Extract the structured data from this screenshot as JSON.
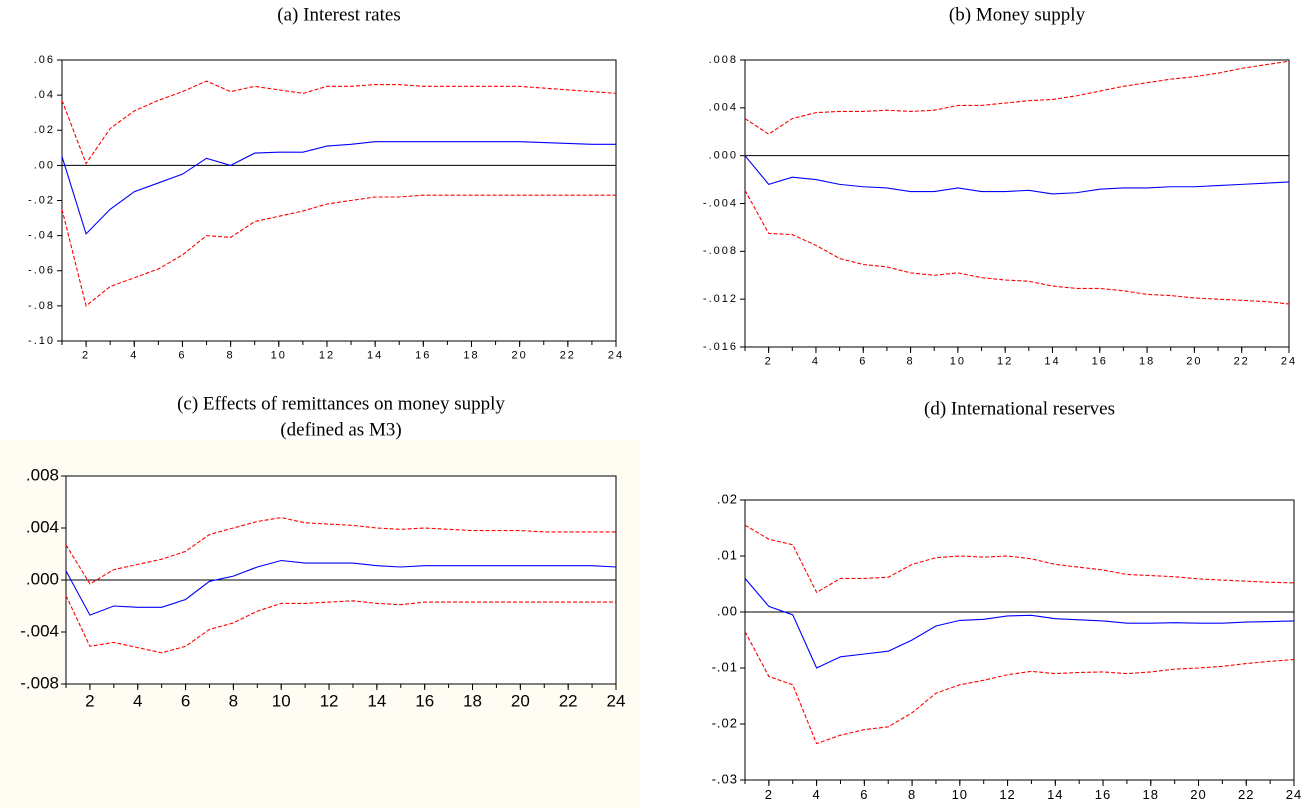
{
  "chart_data": [
    {
      "type": "line",
      "title": "(a) Interest rates",
      "x": [
        1,
        2,
        3,
        4,
        5,
        6,
        7,
        8,
        9,
        10,
        11,
        12,
        13,
        14,
        15,
        16,
        17,
        18,
        19,
        20,
        21,
        22,
        23,
        24
      ],
      "xlim": [
        1,
        24
      ],
      "xticks": [
        2,
        4,
        6,
        8,
        10,
        12,
        14,
        16,
        18,
        20,
        22,
        24
      ],
      "ylim": [
        -0.1,
        0.06
      ],
      "yticks": [
        {
          "value": 0.06,
          "label": ".06"
        },
        {
          "value": 0.04,
          "label": ".04"
        },
        {
          "value": 0.02,
          "label": ".02"
        },
        {
          "value": 0,
          "label": ".00"
        },
        {
          "value": -0.02,
          "label": "-.02"
        },
        {
          "value": -0.04,
          "label": "-.04"
        },
        {
          "value": -0.06,
          "label": "-.06"
        },
        {
          "value": -0.08,
          "label": "-.08"
        },
        {
          "value": -0.1,
          "label": "-.10"
        }
      ],
      "zero_line": true,
      "series": [
        {
          "color": "#ff0000",
          "dashed": true,
          "values": [
            0.037,
            0.001,
            0.021,
            0.031,
            0.037,
            0.042,
            0.048,
            0.042,
            0.045,
            0.043,
            0.041,
            0.045,
            0.045,
            0.046,
            0.046,
            0.045,
            0.045,
            0.045,
            0.045,
            0.045,
            0.044,
            0.043,
            0.042,
            0.041
          ]
        },
        {
          "color": "#0000ff",
          "dashed": false,
          "values": [
            0.005,
            -0.039,
            -0.025,
            -0.015,
            -0.01,
            -0.005,
            0.004,
            0.0,
            0.007,
            0.0075,
            0.0075,
            0.011,
            0.012,
            0.0135,
            0.0135,
            0.0135,
            0.0135,
            0.0135,
            0.0135,
            0.0135,
            0.013,
            0.0125,
            0.012,
            0.012
          ]
        },
        {
          "color": "#ff0000",
          "dashed": true,
          "values": [
            -0.025,
            -0.08,
            -0.069,
            -0.064,
            -0.059,
            -0.051,
            -0.04,
            -0.041,
            -0.032,
            -0.029,
            -0.026,
            -0.022,
            -0.02,
            -0.018,
            -0.018,
            -0.017,
            -0.017,
            -0.017,
            -0.017,
            -0.017,
            -0.017,
            -0.017,
            -0.017,
            -0.017
          ]
        }
      ]
    },
    {
      "type": "line",
      "title": "(b) Money supply",
      "x": [
        1,
        2,
        3,
        4,
        5,
        6,
        7,
        8,
        9,
        10,
        11,
        12,
        13,
        14,
        15,
        16,
        17,
        18,
        19,
        20,
        21,
        22,
        23,
        24
      ],
      "xlim": [
        1,
        24
      ],
      "xticks": [
        2,
        4,
        6,
        8,
        10,
        12,
        14,
        16,
        18,
        20,
        22,
        24
      ],
      "ylim": [
        -0.016,
        0.008
      ],
      "yticks": [
        {
          "value": 0.008,
          "label": ".008"
        },
        {
          "value": 0.004,
          "label": ".004"
        },
        {
          "value": 0,
          "label": ".000"
        },
        {
          "value": -0.004,
          "label": "-.004"
        },
        {
          "value": -0.008,
          "label": "-.008"
        },
        {
          "value": -0.012,
          "label": "-.012"
        },
        {
          "value": -0.016,
          "label": "-.016"
        }
      ],
      "zero_line": true,
      "series": [
        {
          "color": "#ff0000",
          "dashed": true,
          "values": [
            0.0031,
            0.0018,
            0.0031,
            0.0036,
            0.0037,
            0.0037,
            0.0038,
            0.0037,
            0.0038,
            0.0042,
            0.0042,
            0.0044,
            0.0046,
            0.0047,
            0.005,
            0.0054,
            0.0058,
            0.0061,
            0.0064,
            0.0066,
            0.0069,
            0.0073,
            0.0076,
            0.0079
          ]
        },
        {
          "color": "#0000ff",
          "dashed": false,
          "values": [
            0.0,
            -0.0024,
            -0.0018,
            -0.002,
            -0.0024,
            -0.0026,
            -0.0027,
            -0.003,
            -0.003,
            -0.0027,
            -0.003,
            -0.003,
            -0.0029,
            -0.0032,
            -0.0031,
            -0.0028,
            -0.0027,
            -0.0027,
            -0.0026,
            -0.0026,
            -0.0025,
            -0.0024,
            -0.0023,
            -0.0022
          ]
        },
        {
          "color": "#ff0000",
          "dashed": true,
          "values": [
            -0.0029,
            -0.0065,
            -0.0066,
            -0.0075,
            -0.0086,
            -0.0091,
            -0.0093,
            -0.0098,
            -0.01,
            -0.0098,
            -0.0102,
            -0.0104,
            -0.0105,
            -0.0109,
            -0.0111,
            -0.0111,
            -0.0113,
            -0.0116,
            -0.0117,
            -0.0119,
            -0.012,
            -0.0121,
            -0.0122,
            -0.0124
          ]
        }
      ]
    },
    {
      "type": "line",
      "title": "(c) Effects of remittances on money supply",
      "subtitle": "(defined as M3)",
      "x": [
        1,
        2,
        3,
        4,
        5,
        6,
        7,
        8,
        9,
        10,
        11,
        12,
        13,
        14,
        15,
        16,
        17,
        18,
        19,
        20,
        21,
        22,
        23,
        24
      ],
      "xlim": [
        1,
        24
      ],
      "xticks": [
        2,
        4,
        6,
        8,
        10,
        12,
        14,
        16,
        18,
        20,
        22,
        24
      ],
      "ylim": [
        -0.008,
        0.008
      ],
      "yticks": [
        {
          "value": 0.008,
          "label": ".008"
        },
        {
          "value": 0.004,
          "label": ".004"
        },
        {
          "value": 0,
          "label": ".000"
        },
        {
          "value": -0.004,
          "label": "-.004"
        },
        {
          "value": -0.008,
          "label": "-.008"
        }
      ],
      "zero_line": true,
      "series": [
        {
          "color": "#ff0000",
          "dashed": true,
          "values": [
            0.0027,
            -0.0003,
            0.0008,
            0.0012,
            0.0016,
            0.0022,
            0.0035,
            0.004,
            0.0045,
            0.0048,
            0.0044,
            0.0043,
            0.0042,
            0.004,
            0.0039,
            0.004,
            0.0039,
            0.0038,
            0.0038,
            0.0038,
            0.0037,
            0.0037,
            0.0037,
            0.0037
          ]
        },
        {
          "color": "#0000ff",
          "dashed": false,
          "values": [
            0.0007,
            -0.0027,
            -0.002,
            -0.0021,
            -0.0021,
            -0.0015,
            -0.0001,
            0.0003,
            0.001,
            0.0015,
            0.0013,
            0.0013,
            0.0013,
            0.0011,
            0.001,
            0.0011,
            0.0011,
            0.0011,
            0.0011,
            0.0011,
            0.0011,
            0.0011,
            0.0011,
            0.001
          ]
        },
        {
          "color": "#ff0000",
          "dashed": true,
          "values": [
            -0.0012,
            -0.0051,
            -0.0048,
            -0.0052,
            -0.0056,
            -0.0051,
            -0.0038,
            -0.0033,
            -0.0024,
            -0.0018,
            -0.0018,
            -0.0017,
            -0.0016,
            -0.0018,
            -0.0019,
            -0.0017,
            -0.0017,
            -0.0017,
            -0.0017,
            -0.0017,
            -0.0017,
            -0.0017,
            -0.0017,
            -0.0017
          ]
        }
      ]
    },
    {
      "type": "line",
      "title": "(d) International reserves",
      "x": [
        1,
        2,
        3,
        4,
        5,
        6,
        7,
        8,
        9,
        10,
        11,
        12,
        13,
        14,
        15,
        16,
        17,
        18,
        19,
        20,
        21,
        22,
        23,
        24
      ],
      "xlim": [
        1,
        24
      ],
      "xticks": [
        2,
        4,
        6,
        8,
        10,
        12,
        14,
        16,
        18,
        20,
        22,
        24
      ],
      "ylim": [
        -0.03,
        0.02
      ],
      "yticks": [
        {
          "value": 0.02,
          "label": ".02"
        },
        {
          "value": 0.01,
          "label": ".01"
        },
        {
          "value": 0,
          "label": ".00"
        },
        {
          "value": -0.01,
          "label": "-.01"
        },
        {
          "value": -0.02,
          "label": "-.02"
        },
        {
          "value": -0.03,
          "label": "-.03"
        }
      ],
      "zero_line": true,
      "series": [
        {
          "color": "#ff0000",
          "dashed": true,
          "values": [
            0.0155,
            0.013,
            0.012,
            0.0035,
            0.006,
            0.006,
            0.0062,
            0.0085,
            0.0097,
            0.01,
            0.0098,
            0.01,
            0.0095,
            0.0085,
            0.008,
            0.0075,
            0.0067,
            0.0065,
            0.0063,
            0.0059,
            0.0057,
            0.0055,
            0.0053,
            0.0052
          ]
        },
        {
          "color": "#0000ff",
          "dashed": false,
          "values": [
            0.006,
            0.001,
            -0.0005,
            -0.01,
            -0.008,
            -0.0075,
            -0.007,
            -0.005,
            -0.0025,
            -0.0015,
            -0.0013,
            -0.0007,
            -0.0006,
            -0.0012,
            -0.0014,
            -0.0016,
            -0.002,
            -0.002,
            -0.0019,
            -0.002,
            -0.002,
            -0.0018,
            -0.0017,
            -0.0016
          ]
        },
        {
          "color": "#ff0000",
          "dashed": true,
          "values": [
            -0.0035,
            -0.0115,
            -0.013,
            -0.0235,
            -0.022,
            -0.021,
            -0.0205,
            -0.018,
            -0.0145,
            -0.013,
            -0.0122,
            -0.0112,
            -0.0106,
            -0.011,
            -0.0108,
            -0.0107,
            -0.011,
            -0.0107,
            -0.0102,
            -0.01,
            -0.0097,
            -0.0092,
            -0.0088,
            -0.0085
          ]
        }
      ]
    }
  ]
}
